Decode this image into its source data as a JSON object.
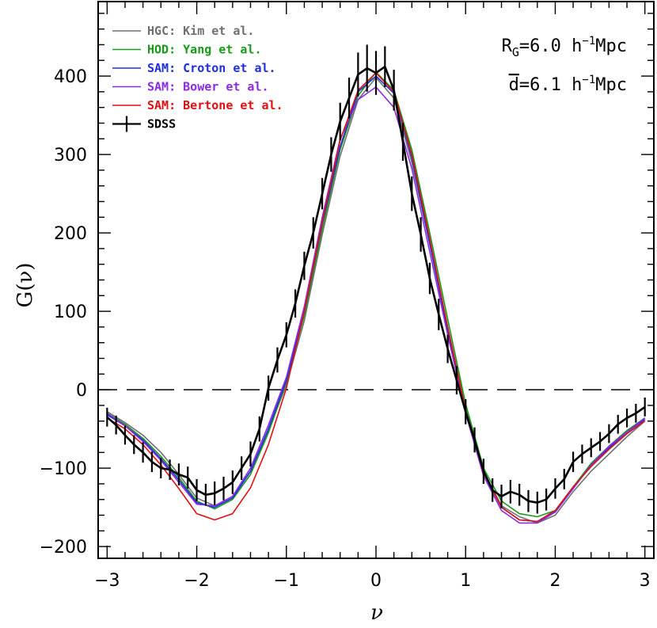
{
  "chart_data": {
    "type": "line",
    "title": "",
    "xlabel": "ν",
    "ylabel": "G(ν)",
    "xlim": [
      -3.1,
      3.1
    ],
    "ylim": [
      -215,
      495
    ],
    "x_ticks": [
      -3,
      -2,
      -1,
      0,
      1,
      2,
      3
    ],
    "x_tick_labels": [
      "−3",
      "−2",
      "−1",
      "0",
      "1",
      "2",
      "3"
    ],
    "y_ticks": [
      -200,
      -100,
      0,
      100,
      200,
      300,
      400
    ],
    "y_tick_labels": [
      "−200",
      "−100",
      "0",
      "100",
      "200",
      "300",
      "400"
    ],
    "reference_line": {
      "y": 0,
      "style": "dashed"
    },
    "annotations": [
      {
        "text": "R",
        "sub": "G",
        "rest": "=6.0 h",
        "sup": "−1",
        "tail": "Mpc"
      },
      {
        "text": "d",
        "overline": true,
        "rest": "=6.1 h",
        "sup": "−1",
        "tail": "Mpc"
      }
    ],
    "legend_position": "top-left",
    "x": [
      -3.0,
      -2.8,
      -2.6,
      -2.4,
      -2.2,
      -2.0,
      -1.8,
      -1.6,
      -1.4,
      -1.2,
      -1.0,
      -0.8,
      -0.6,
      -0.4,
      -0.2,
      0.0,
      0.2,
      0.4,
      0.6,
      0.8,
      1.0,
      1.2,
      1.4,
      1.6,
      1.8,
      2.0,
      2.2,
      2.4,
      2.6,
      2.8,
      3.0
    ],
    "series": [
      {
        "name": "HGC: Kim et al.",
        "color": "#707070",
        "values": [
          -28,
          -42,
          -58,
          -80,
          -108,
          -138,
          -148,
          -136,
          -104,
          -52,
          6,
          88,
          198,
          298,
          370,
          398,
          372,
          290,
          186,
          80,
          -24,
          -104,
          -148,
          -162,
          -170,
          -160,
          -130,
          -104,
          -82,
          -60,
          -40
        ]
      },
      {
        "name": "HOD: Yang et al.",
        "color": "#1a9a1a",
        "values": [
          -30,
          -44,
          -62,
          -85,
          -112,
          -142,
          -152,
          -140,
          -108,
          -55,
          10,
          95,
          205,
          306,
          375,
          405,
          382,
          306,
          200,
          90,
          -18,
          -100,
          -142,
          -158,
          -162,
          -154,
          -124,
          -94,
          -72,
          -52,
          -36
        ]
      },
      {
        "name": "SAM: Croton et al.",
        "color": "#1e2ee0",
        "values": [
          -32,
          -46,
          -64,
          -88,
          -115,
          -144,
          -150,
          -138,
          -104,
          -50,
          12,
          100,
          212,
          310,
          380,
          400,
          378,
          296,
          186,
          76,
          -26,
          -106,
          -150,
          -166,
          -168,
          -156,
          -126,
          -96,
          -74,
          -54,
          -38
        ]
      },
      {
        "name": "SAM: Bower et al.",
        "color": "#8a2be2",
        "values": [
          -30,
          -46,
          -66,
          -90,
          -118,
          -146,
          -148,
          -136,
          -100,
          -45,
          16,
          106,
          220,
          320,
          370,
          386,
          360,
          282,
          176,
          70,
          -30,
          -110,
          -154,
          -170,
          -170,
          -156,
          -126,
          -96,
          -72,
          -54,
          -36
        ]
      },
      {
        "name": "SAM: Bertone et al.",
        "color": "#e01010",
        "values": [
          -36,
          -50,
          -70,
          -96,
          -126,
          -158,
          -166,
          -158,
          -125,
          -70,
          2,
          100,
          214,
          318,
          382,
          404,
          380,
          300,
          192,
          80,
          -26,
          -106,
          -150,
          -166,
          -168,
          -154,
          -124,
          -98,
          -76,
          -56,
          -40
        ]
      },
      {
        "name": "SDSS",
        "color": "#000000",
        "x": [
          -3.0,
          -2.9,
          -2.8,
          -2.7,
          -2.6,
          -2.5,
          -2.4,
          -2.3,
          -2.2,
          -2.1,
          -2.0,
          -1.9,
          -1.8,
          -1.7,
          -1.6,
          -1.5,
          -1.4,
          -1.3,
          -1.2,
          -1.1,
          -1.0,
          -0.9,
          -0.8,
          -0.7,
          -0.6,
          -0.5,
          -0.4,
          -0.3,
          -0.2,
          -0.1,
          0.0,
          0.1,
          0.2,
          0.3,
          0.4,
          0.5,
          0.6,
          0.7,
          0.8,
          0.9,
          1.0,
          1.1,
          1.2,
          1.3,
          1.4,
          1.5,
          1.6,
          1.7,
          1.8,
          1.9,
          2.0,
          2.1,
          2.2,
          2.3,
          2.4,
          2.5,
          2.6,
          2.7,
          2.8,
          2.9,
          3.0
        ],
        "values": [
          -35,
          -45,
          -58,
          -70,
          -80,
          -92,
          -100,
          -102,
          -108,
          -112,
          -128,
          -134,
          -132,
          -126,
          -118,
          -100,
          -82,
          -50,
          2,
          38,
          70,
          110,
          158,
          200,
          250,
          300,
          342,
          372,
          402,
          410,
          404,
          412,
          382,
          316,
          250,
          198,
          142,
          96,
          52,
          12,
          -28,
          -64,
          -104,
          -128,
          -136,
          -130,
          -134,
          -142,
          -144,
          -140,
          -126,
          -114,
          -92,
          -82,
          -74,
          -66,
          -56,
          -44,
          -36,
          -30,
          -22
        ],
        "errors": [
          12,
          12,
          12,
          12,
          13,
          13,
          13,
          13,
          14,
          14,
          14,
          14,
          15,
          15,
          15,
          15,
          16,
          16,
          16,
          16,
          16,
          18,
          18,
          20,
          20,
          22,
          24,
          26,
          28,
          30,
          28,
          26,
          26,
          24,
          22,
          22,
          20,
          20,
          18,
          18,
          16,
          16,
          16,
          15,
          15,
          15,
          14,
          14,
          14,
          14,
          13,
          13,
          13,
          12,
          12,
          12,
          12,
          12,
          12,
          12,
          12
        ]
      }
    ]
  }
}
